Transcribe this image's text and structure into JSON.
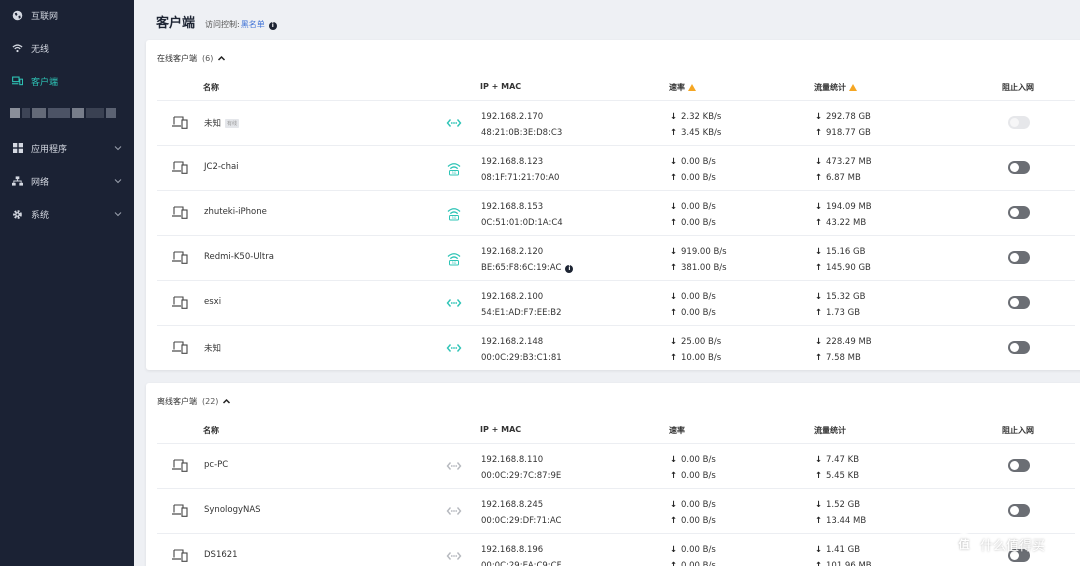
{
  "sidebar": {
    "items": [
      {
        "label": "互联网",
        "icon": "globe-icon"
      },
      {
        "label": "无线",
        "icon": "wifi-icon"
      },
      {
        "label": "客户端",
        "icon": "devices-icon",
        "active": true
      },
      {
        "label": "应用程序",
        "icon": "apps-icon"
      },
      {
        "label": "网络",
        "icon": "network-icon"
      },
      {
        "label": "系统",
        "icon": "gear-icon"
      }
    ]
  },
  "header": {
    "title": "客户端",
    "access_label": "访问控制:",
    "blacklist": "黑名单"
  },
  "columns": {
    "name": "名称",
    "ipmac": "IP + MAC",
    "rate": "速率",
    "traffic": "流量统计",
    "block": "阻止入网"
  },
  "online": {
    "title": "在线客户端",
    "count": "(6)",
    "rows": [
      {
        "name": "未知",
        "tag": "有线",
        "conn": "wired",
        "ip": "192.168.2.170",
        "mac": "48:21:0B:3E:D8:C3",
        "rate_down": "2.32 KB/s",
        "rate_up": "3.45 KB/s",
        "traffic_down": "292.78 GB",
        "traffic_up": "918.77 GB",
        "blocked": false,
        "disabled": true
      },
      {
        "name": "JC2-chai",
        "conn": "wifi",
        "ip": "192.168.8.123",
        "mac": "08:1F:71:21:70:A0",
        "rate_down": "0.00 B/s",
        "rate_up": "0.00 B/s",
        "traffic_down": "473.27 MB",
        "traffic_up": "6.87 MB",
        "blocked": false
      },
      {
        "name": "zhuteki-iPhone",
        "conn": "wifi",
        "ip": "192.168.8.153",
        "mac": "0C:51:01:0D:1A:C4",
        "rate_down": "0.00 B/s",
        "rate_up": "0.00 B/s",
        "traffic_down": "194.09 MB",
        "traffic_up": "43.22 MB",
        "blocked": false
      },
      {
        "name": "Redmi-K50-Ultra",
        "conn": "wifi",
        "ip": "192.168.2.120",
        "mac": "BE:65:F8:6C:19:AC",
        "mac_info": true,
        "rate_down": "919.00 B/s",
        "rate_up": "381.00 B/s",
        "traffic_down": "15.16 GB",
        "traffic_up": "145.90 GB",
        "blocked": false
      },
      {
        "name": "esxi",
        "conn": "wired",
        "ip": "192.168.2.100",
        "mac": "54:E1:AD:F7:EE:B2",
        "rate_down": "0.00 B/s",
        "rate_up": "0.00 B/s",
        "traffic_down": "15.32 GB",
        "traffic_up": "1.73 GB",
        "blocked": false
      },
      {
        "name": "未知",
        "conn": "wired",
        "ip": "192.168.2.148",
        "mac": "00:0C:29:B3:C1:81",
        "rate_down": "25.00 B/s",
        "rate_up": "10.00 B/s",
        "traffic_down": "228.49 MB",
        "traffic_up": "7.58 MB",
        "blocked": false
      }
    ]
  },
  "offline": {
    "title": "离线客户端",
    "count": "(22)",
    "rows": [
      {
        "name": "pc-PC",
        "conn": "wired-offline",
        "ip": "192.168.8.110",
        "mac": "00:0C:29:7C:87:9E",
        "rate_down": "0.00 B/s",
        "rate_up": "0.00 B/s",
        "traffic_down": "7.47 KB",
        "traffic_up": "5.45 KB",
        "blocked": false
      },
      {
        "name": "SynologyNAS",
        "conn": "wired-offline",
        "ip": "192.168.8.245",
        "mac": "00:0C:29:DF:71:AC",
        "rate_down": "0.00 B/s",
        "rate_up": "0.00 B/s",
        "traffic_down": "1.52 GB",
        "traffic_up": "13.44 MB",
        "blocked": false
      },
      {
        "name": "DS1621",
        "conn": "wired-offline",
        "ip": "192.168.8.196",
        "mac": "00:0C:29:EA:C9:CF",
        "rate_down": "0.00 B/s",
        "rate_up": "0.00 B/s",
        "traffic_down": "1.41 GB",
        "traffic_up": "101.96 MB",
        "blocked": false
      }
    ]
  },
  "watermark": {
    "logo": "值",
    "text": "什么值得买"
  },
  "colors": {
    "sidebar_bg": "#1b2234",
    "accent": "#2ec4b6",
    "link": "#3b6fd6",
    "warning": "#f5a623",
    "toggle_off": "#6b6e74"
  }
}
